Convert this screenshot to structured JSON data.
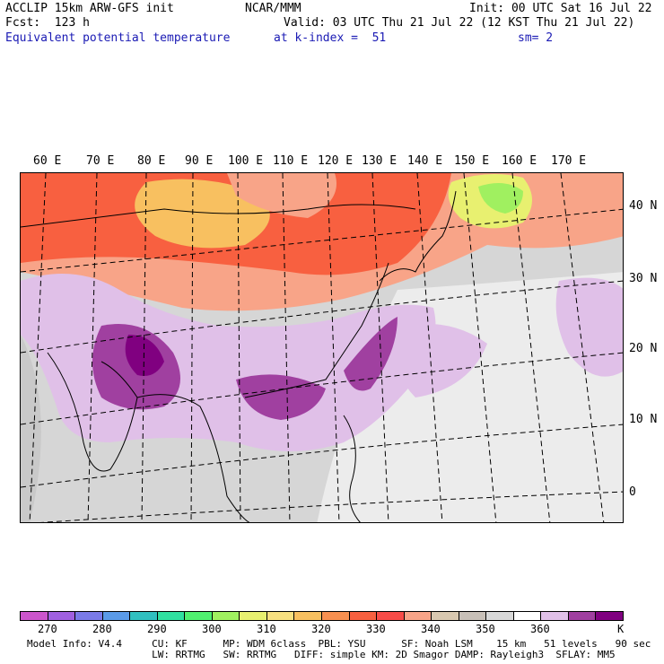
{
  "header": {
    "model": "ACCLIP 15km ARW-GFS init",
    "fcst": "Fcst:  123 h",
    "field": "Equivalent potential temperature",
    "center": "NCAR/MMM",
    "kindex": "at k-index =  51",
    "init": "Init: 00 UTC Sat 16 Jul 22",
    "valid": "Valid: 03 UTC Thu 21 Jul 22 (12 KST Thu 21 Jul 22)",
    "sm": "sm= 2"
  },
  "map": {
    "lon_labels": [
      "60 E",
      "70 E",
      "80 E",
      "90 E",
      "100 E",
      "110 E",
      "120 E",
      "130 E",
      "140 E",
      "150 E",
      "160 E",
      "170 E"
    ],
    "lat_labels": [
      "40 N",
      "30 N",
      "20 N",
      "10 N",
      "0"
    ]
  },
  "legend": {
    "colors": [
      "#cc55cc",
      "#a060e0",
      "#7a7ae8",
      "#5a9ae8",
      "#30c0c0",
      "#30e0a0",
      "#50f070",
      "#a0f060",
      "#e8f070",
      "#f8e080",
      "#f8c060",
      "#f89050",
      "#f86040",
      "#f84c48",
      "#f8a488",
      "#d8c8b0",
      "#c8c0b8",
      "#d8d8d8",
      "#ffffff",
      "#e0c0e8",
      "#a040a0",
      "#800080"
    ],
    "ticks": [
      "270",
      "280",
      "290",
      "300",
      "310",
      "320",
      "330",
      "340",
      "350",
      "360"
    ],
    "unit": "K"
  },
  "info": {
    "line1": "Model Info: V4.4     CU: KF      MP: WDM 6class  PBL: YSU      SF: Noah LSM    15 km   51 levels   90 sec",
    "line2": "                     LW: RRTMG   SW: RRTMG   DIFF: simple KM: 2D Smagor DAMP: Rayleigh3  SFLAY: MM5"
  }
}
